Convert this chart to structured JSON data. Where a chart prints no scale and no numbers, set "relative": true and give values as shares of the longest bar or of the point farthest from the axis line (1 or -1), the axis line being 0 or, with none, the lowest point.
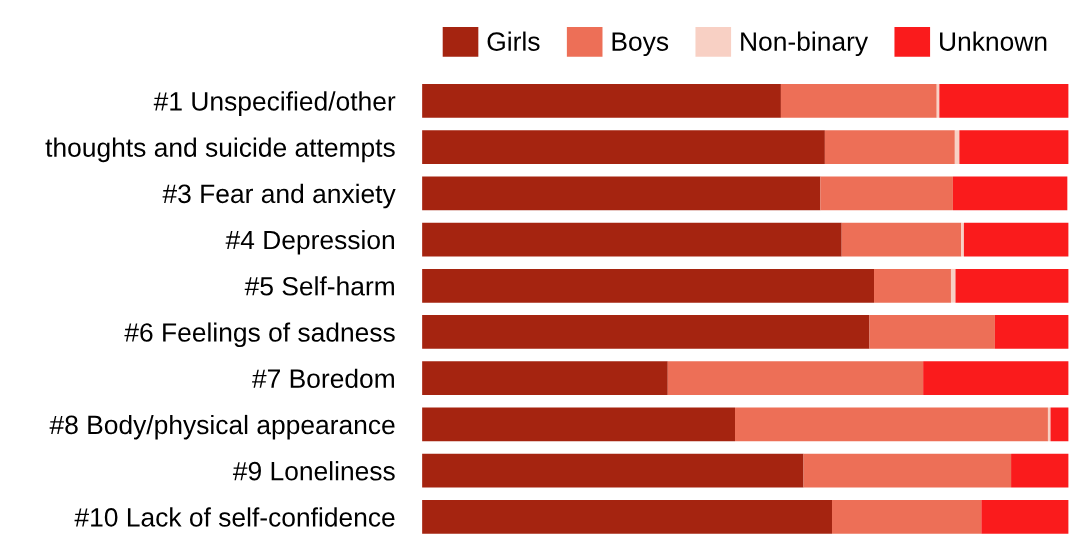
{
  "chart_data": {
    "type": "bar",
    "orientation": "horizontal",
    "stacked": true,
    "relative": true,
    "legend": "top",
    "categories": [
      "#1 Unspecified/other",
      "thoughts and suicide attempts",
      "#3 Fear and anxiety",
      "#4 Depression",
      "#5 Self-harm",
      "#6 Feelings of sadness",
      "#7 Boredom",
      "#8 Body/physical appearance",
      "#9 Loneliness",
      "#10 Lack of self-confidence"
    ],
    "series": [
      {
        "name": "Girls",
        "color": "#a52410",
        "values": [
          0.555,
          0.623,
          0.616,
          0.649,
          0.699,
          0.692,
          0.38,
          0.484,
          0.59,
          0.634
        ]
      },
      {
        "name": "Boys",
        "color": "#ed6f57",
        "values": [
          0.241,
          0.201,
          0.205,
          0.185,
          0.119,
          0.194,
          0.395,
          0.484,
          0.321,
          0.231
        ]
      },
      {
        "name": "Non-binary",
        "color": "#f8d0c4",
        "values": [
          0.004,
          0.007,
          0,
          0.004,
          0.007,
          0,
          0,
          0.004,
          0,
          0
        ]
      },
      {
        "name": "Unknown",
        "color": "#fa1b1c",
        "values": [
          0.2,
          0.169,
          0.177,
          0.162,
          0.175,
          0.114,
          0.225,
          0.028,
          0.089,
          0.135
        ]
      }
    ]
  }
}
